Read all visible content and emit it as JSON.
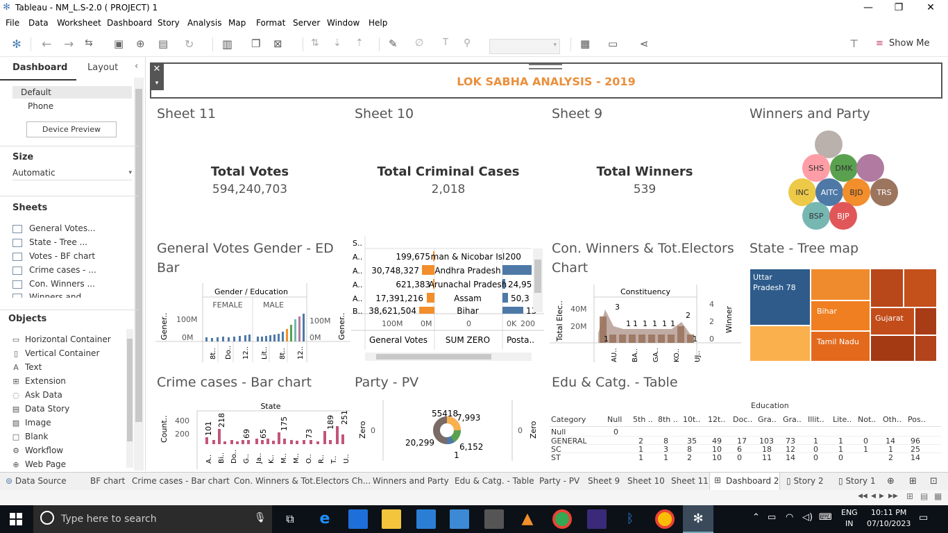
{
  "window": {
    "title": "Tableau - NM_L.S-2.0  ( PROJECT) 1"
  },
  "menu": [
    "File",
    "Data",
    "Worksheet",
    "Dashboard",
    "Story",
    "Analysis",
    "Map",
    "Format",
    "Server",
    "Window",
    "Help"
  ],
  "toolbar": {
    "show_me": "Show Me"
  },
  "left": {
    "tab_dashboard": "Dashboard",
    "tab_layout": "Layout",
    "device_default": "Default",
    "device_phone": "Phone",
    "device_preview": "Device Preview",
    "size_header": "Size",
    "size_value": "Automatic",
    "sheets_header": "Sheets",
    "sheets": [
      "General Votes...",
      "State  - Tree ...",
      "Votes - BF chart",
      "Crime cases - ...",
      "Con. Winners ...",
      "Winners and ..."
    ],
    "objects_header": "Objects",
    "objects": [
      "Horizontal Container",
      "Vertical Container",
      "Text",
      "Extension",
      "Ask Data",
      "Data Story",
      "Image",
      "Blank",
      "Workflow",
      "Web Page"
    ]
  },
  "dashboard": {
    "title": "LOK SABHA ANALYSIS - 2019",
    "sheet11": {
      "title": "Sheet 11",
      "label": "Total Votes",
      "value": "594,240,703"
    },
    "sheet10": {
      "title": "Sheet 10",
      "label": "Total Criminal Cases",
      "value": "2,018"
    },
    "sheet9": {
      "title": "Sheet 9",
      "label": "Total Winners",
      "value": "539"
    },
    "winners_party": {
      "title": "Winners and Party",
      "bubbles": [
        "SHS",
        "DMK",
        "INC",
        "AITC",
        "BJD",
        "TRS",
        "BSP",
        "BJP"
      ]
    },
    "gender_ed": {
      "title": "General Votes Gender - ED Bar",
      "header": "Gender / Education",
      "female": "FEMALE",
      "male": "MALE",
      "ylabel": "Gener..",
      "yticks": [
        "100M",
        "0M"
      ],
      "xlabels": [
        "8t..",
        "Do..",
        "12..",
        "Lit..",
        "8t..",
        "12.."
      ]
    },
    "bf": {
      "header": "S..",
      "rows": [
        {
          "code": "A..",
          "votes": "199,675",
          "state": "man & Nicobar Isl",
          "post": "200"
        },
        {
          "code": "A..",
          "votes": "30,748,327",
          "state": "Andhra Pradesh",
          "post": ""
        },
        {
          "code": "A..",
          "votes": "621,383",
          "state": "Arunachal Pradesh",
          "post": "24,95"
        },
        {
          "code": "A..",
          "votes": "17,391,216",
          "state": "Assam",
          "post": "50,3"
        },
        {
          "code": "B..",
          "votes": "38,621,504",
          "state": "Bihar",
          "post": "13"
        }
      ],
      "axis1": [
        "100M",
        "0M"
      ],
      "axis2": "0",
      "axis3": [
        "0K",
        "200"
      ],
      "col1": "General Votes",
      "col2": "SUM ZERO",
      "col3": "Posta.."
    },
    "con_winners": {
      "title": "Con. Winners & Tot.Electors Chart",
      "header": "Constituency",
      "ylabel": "Total Elec..",
      "y2label": "Winner",
      "yticks": [
        "40M",
        "20M"
      ],
      "y2ticks": [
        "4",
        "2",
        "0"
      ],
      "labels": [
        "3",
        "1",
        "1",
        "1",
        "1",
        "1",
        "1",
        "1",
        "2",
        "1",
        "1"
      ],
      "xlabels": [
        "AU..",
        "BA..",
        "GA..",
        "KO..",
        "UJ.."
      ]
    },
    "treemap": {
      "title": "State  - Tree map",
      "cells": [
        "Uttar Pradesh 78",
        "Bihar",
        "Gujarat",
        "Tamil Nadu"
      ]
    },
    "crime": {
      "title": "Crime cases - Bar chart",
      "header": "State",
      "ylabel": "Count..",
      "yticks": [
        "400",
        "200"
      ],
      "labels": [
        "101",
        "218",
        "69",
        "65",
        "175",
        "73",
        "189",
        "251"
      ],
      "xlabels": [
        "A..",
        "Bi..",
        "Do..",
        "G..",
        "Ja..",
        "K..",
        "M..",
        "M..",
        "O..",
        "R..",
        "T..",
        "U.."
      ]
    },
    "party_pv": {
      "title": "Party - PV",
      "left_label": "Zero",
      "right_label": "Zero",
      "zero1": "0",
      "zero2": "0",
      "values": [
        "55418",
        "7,993",
        "20,299",
        "6,152",
        "1"
      ]
    },
    "edu_table": {
      "title": "Edu & Catg. - Table",
      "header": "Education",
      "columns": [
        "Category",
        "Null",
        "5th ..",
        "8th ..",
        "10t..",
        "12t..",
        "Doc..",
        "Gra..",
        "Gra..",
        "Illit..",
        "Lite..",
        "Not..",
        "Oth..",
        "Pos.."
      ],
      "rows": [
        [
          "Null",
          "0",
          "",
          "",
          "",
          "",
          "",
          "",
          "",
          "",
          "",
          "",
          "",
          ""
        ],
        [
          "GENERAL",
          "",
          "2",
          "8",
          "35",
          "49",
          "17",
          "103",
          "73",
          "1",
          "1",
          "0",
          "14",
          "96"
        ],
        [
          "SC",
          "",
          "1",
          "3",
          "8",
          "10",
          "6",
          "18",
          "12",
          "0",
          "1",
          "1",
          "1",
          "25"
        ],
        [
          "ST",
          "",
          "1",
          "1",
          "2",
          "10",
          "0",
          "11",
          "14",
          "0",
          "0",
          "",
          "2",
          "14"
        ]
      ]
    }
  },
  "tabs": [
    "Data Source",
    "BF chart",
    "Crime cases - Bar chart",
    "Con. Winners & Tot.Electors Ch...",
    "Winners and Party",
    "Edu & Catg. - Table",
    "Party - PV",
    "Sheet 9",
    "Sheet 10",
    "Sheet 11",
    "Dashboard 2",
    "Story 2",
    "Story 1"
  ],
  "taskbar": {
    "search_placeholder": "Type here to search",
    "lang1": "ENG",
    "lang2": "IN",
    "time": "10:11 PM",
    "date": "07/10/2023"
  }
}
